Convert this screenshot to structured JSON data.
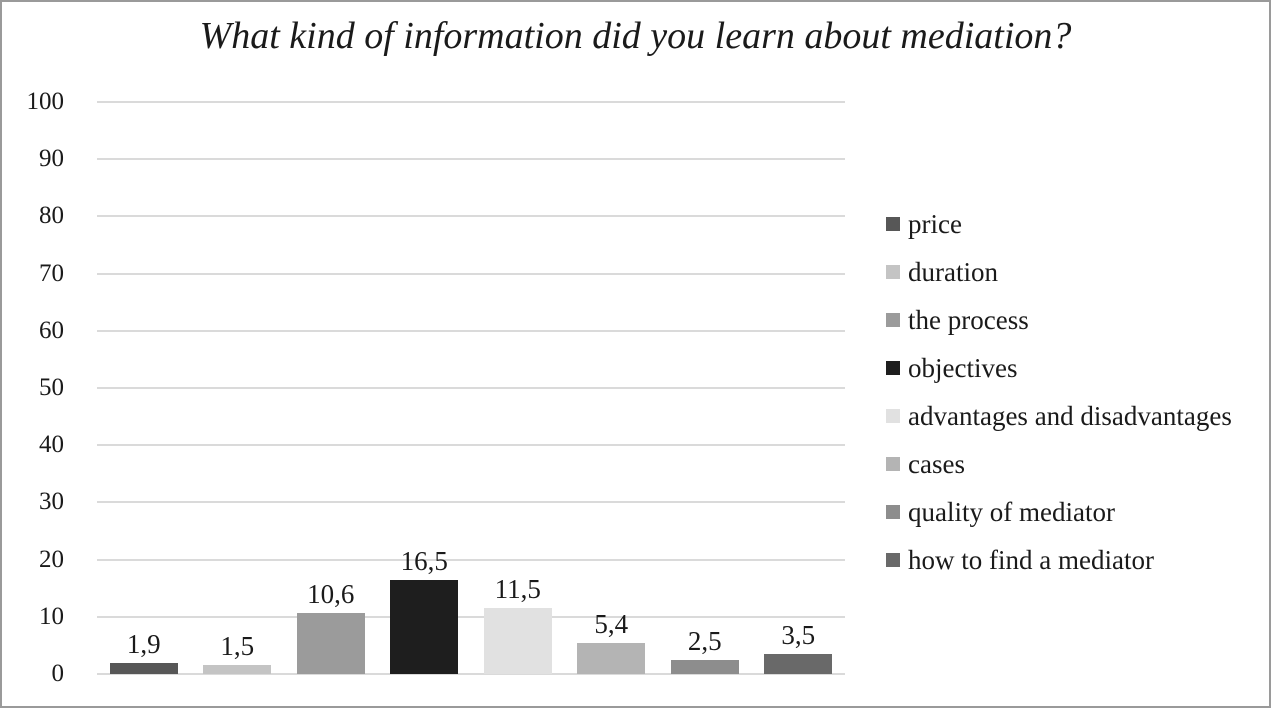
{
  "window": {
    "background": "#ffffff",
    "border_color": "#9a9a9a",
    "text_color": "#1a1a1a"
  },
  "chart_data": {
    "type": "bar",
    "title": "What kind of information did you learn about mediation?",
    "categories": [
      "price",
      "duration",
      "the process",
      "objectives",
      "advantages and disadvantages",
      "cases",
      "quality of mediator",
      "how to find a mediator"
    ],
    "values": [
      1.9,
      1.5,
      10.6,
      16.5,
      11.5,
      5.4,
      2.5,
      3.5
    ],
    "value_labels": [
      "1,9",
      "1,5",
      "10,6",
      "16,5",
      "11,5",
      "5,4",
      "2,5",
      "3,5"
    ],
    "bar_colors": [
      "#575757",
      "#c4c4c4",
      "#9b9b9b",
      "#1e1e1e",
      "#e1e1e1",
      "#b4b4b4",
      "#8d8d8d",
      "#696969"
    ],
    "xlabel": "",
    "ylabel": "",
    "ylim": [
      0,
      100
    ],
    "yticks": [
      100,
      90,
      80,
      70,
      60,
      50,
      40,
      30,
      20,
      10,
      0
    ],
    "grid": true,
    "gridline_color": "#dadada",
    "decimal_separator": ",",
    "legend_position": "right"
  }
}
